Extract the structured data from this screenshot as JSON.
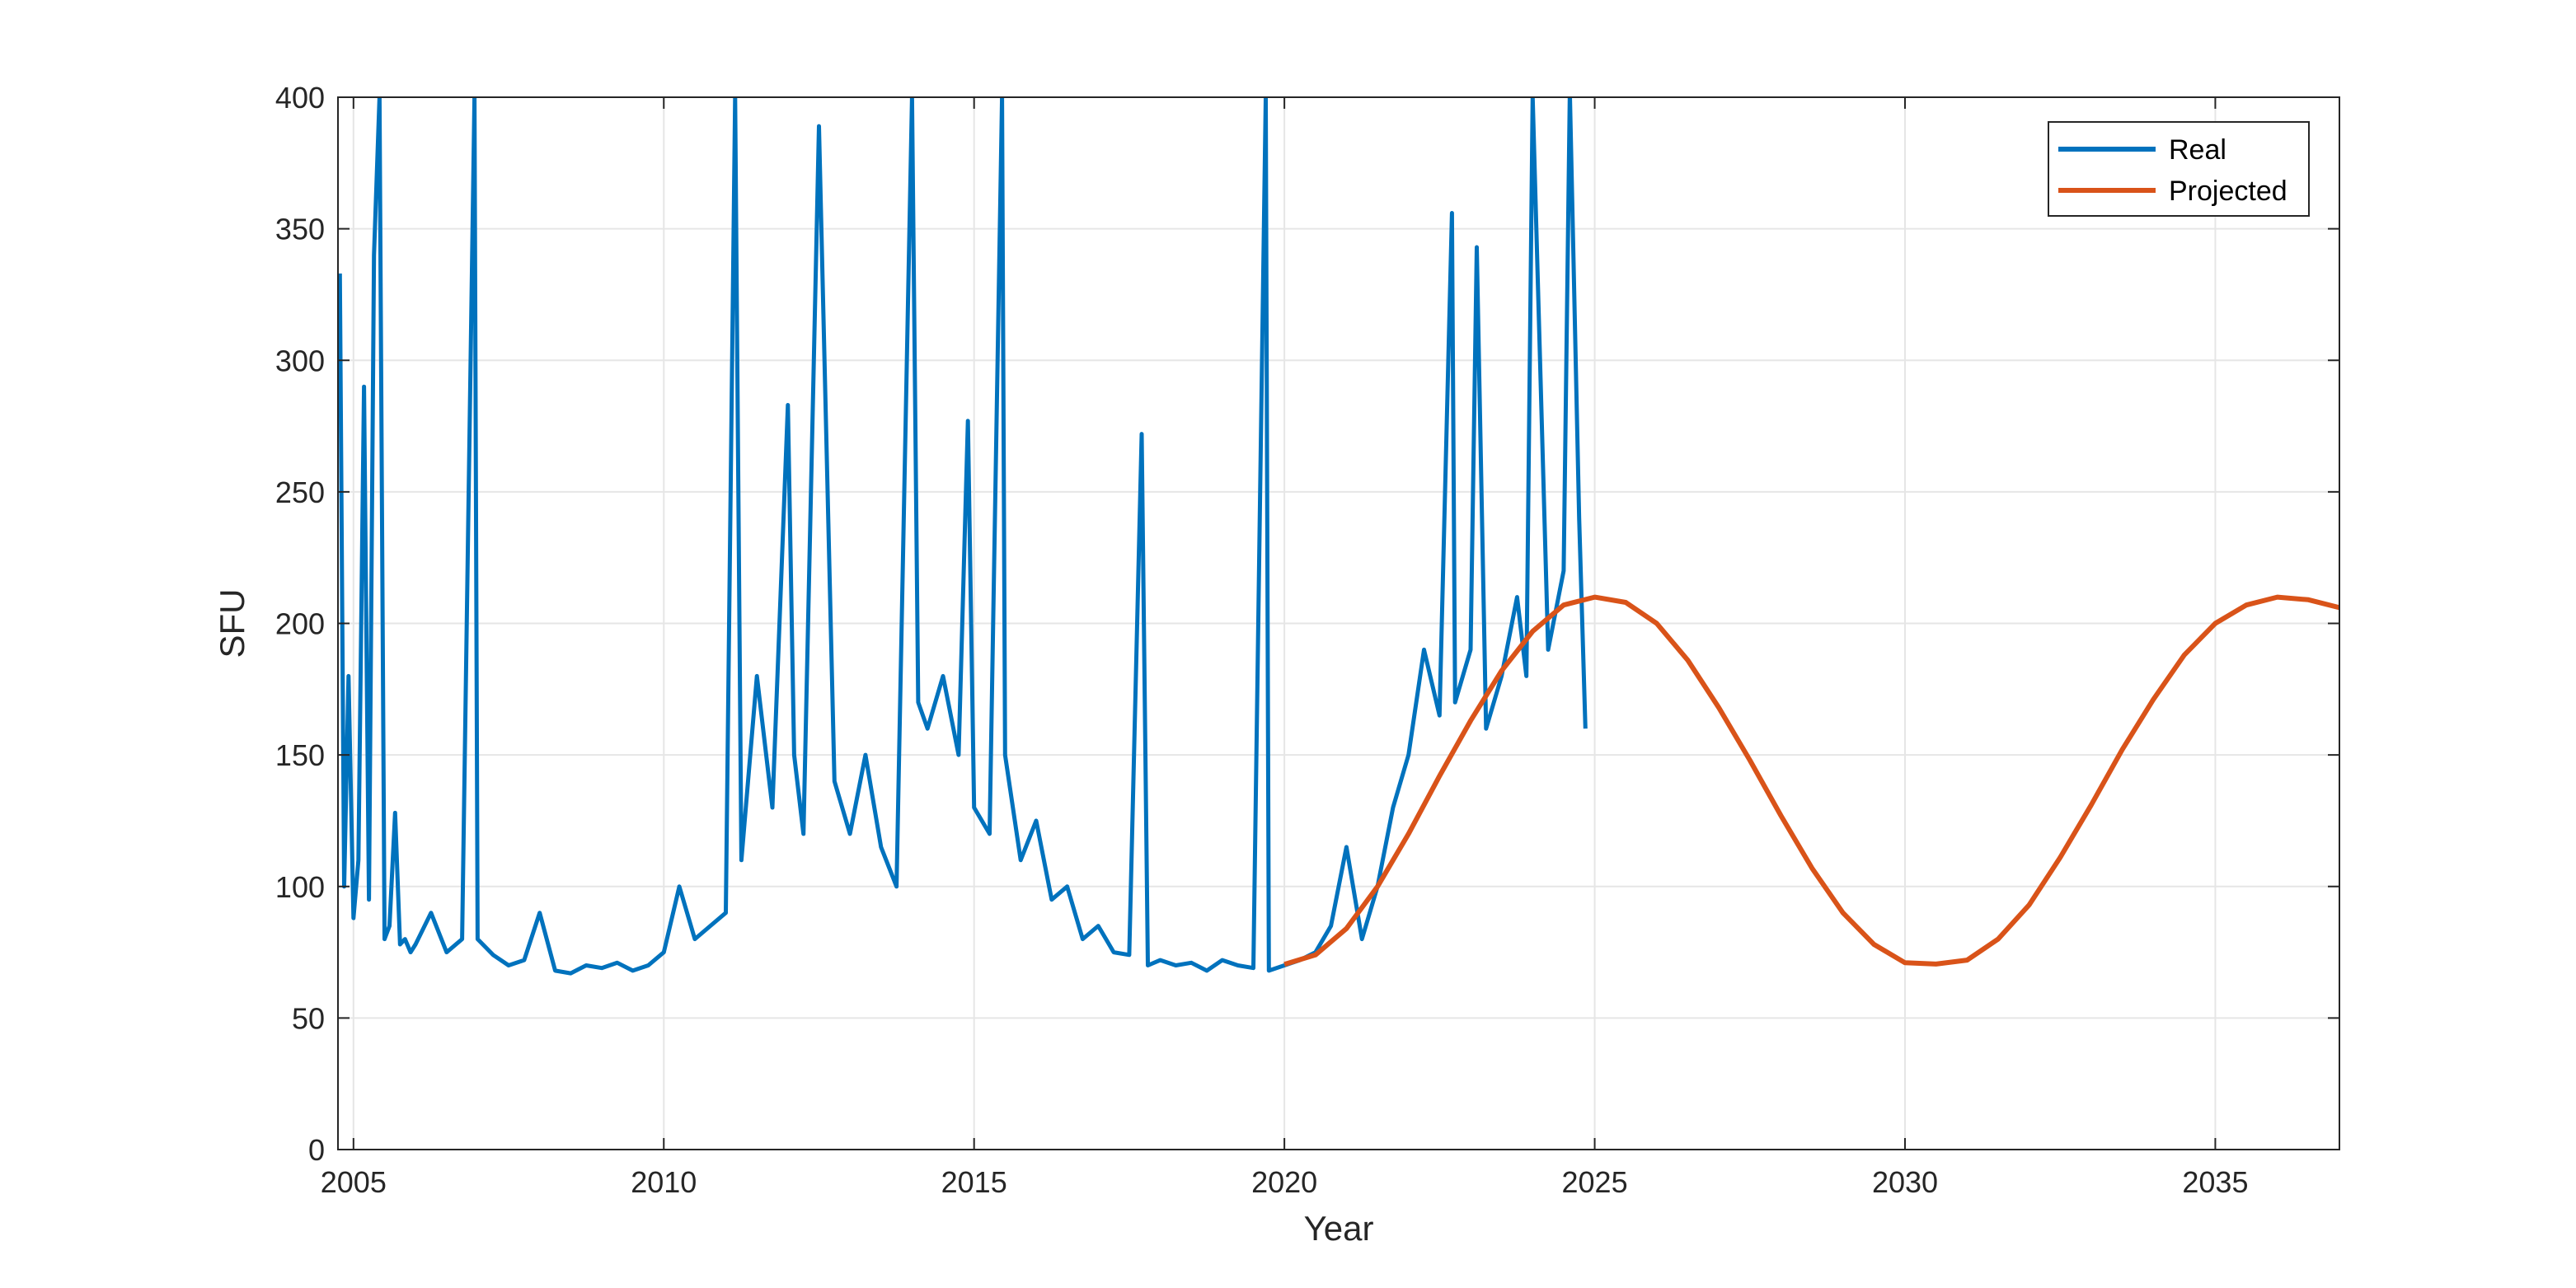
{
  "chart_data": {
    "type": "line",
    "title": "",
    "xlabel": "Year",
    "ylabel": "SFU",
    "xlim": [
      2004.75,
      2037.0
    ],
    "ylim": [
      0,
      400
    ],
    "x_ticks": [
      2005,
      2010,
      2015,
      2020,
      2025,
      2030,
      2035
    ],
    "y_ticks": [
      0,
      50,
      100,
      150,
      200,
      250,
      300,
      350,
      400
    ],
    "grid": true,
    "legend_position": "top-right",
    "colors": {
      "real": "#0072BD",
      "projected": "#D95319",
      "grid": "#e6e6e6",
      "axis": "#262626"
    },
    "series": [
      {
        "name": "Real",
        "x": [
          2004.78,
          2004.85,
          2004.92,
          2005.0,
          2005.08,
          2005.17,
          2005.25,
          2005.33,
          2005.42,
          2005.5,
          2005.58,
          2005.67,
          2005.75,
          2005.83,
          2005.92,
          2006.0,
          2006.25,
          2006.5,
          2006.75,
          2006.95,
          2007.0,
          2007.25,
          2007.5,
          2007.75,
          2008.0,
          2008.25,
          2008.5,
          2008.75,
          2009.0,
          2009.25,
          2009.5,
          2009.75,
          2010.0,
          2010.25,
          2010.5,
          2010.75,
          2011.0,
          2011.15,
          2011.25,
          2011.5,
          2011.75,
          2012.0,
          2012.1,
          2012.25,
          2012.5,
          2012.75,
          2013.0,
          2013.25,
          2013.5,
          2013.75,
          2014.0,
          2014.1,
          2014.25,
          2014.5,
          2014.75,
          2014.9,
          2015.0,
          2015.25,
          2015.45,
          2015.5,
          2015.75,
          2016.0,
          2016.25,
          2016.5,
          2016.75,
          2017.0,
          2017.25,
          2017.5,
          2017.7,
          2017.8,
          2018.0,
          2018.25,
          2018.5,
          2018.75,
          2019.0,
          2019.25,
          2019.5,
          2019.7,
          2019.75,
          2020.0,
          2020.25,
          2020.5,
          2020.75,
          2021.0,
          2021.25,
          2021.5,
          2021.75,
          2022.0,
          2022.25,
          2022.5,
          2022.7,
          2022.75,
          2023.0,
          2023.1,
          2023.25,
          2023.5,
          2023.75,
          2023.9,
          2024.0,
          2024.25,
          2024.5,
          2024.6,
          2024.75,
          2024.85
        ],
        "values": [
          333,
          100,
          180,
          88,
          110,
          290,
          95,
          340,
          400,
          80,
          85,
          128,
          78,
          80,
          75,
          78,
          90,
          75,
          80,
          400,
          80,
          74,
          70,
          72,
          90,
          68,
          67,
          70,
          69,
          71,
          68,
          70,
          75,
          100,
          80,
          85,
          90,
          400,
          110,
          180,
          130,
          283,
          150,
          120,
          389,
          140,
          120,
          150,
          115,
          100,
          400,
          170,
          160,
          180,
          150,
          277,
          130,
          120,
          400,
          150,
          110,
          125,
          95,
          100,
          80,
          85,
          75,
          74,
          272,
          70,
          72,
          70,
          71,
          68,
          72,
          70,
          69,
          400,
          68,
          70,
          72,
          75,
          85,
          115,
          80,
          100,
          130,
          150,
          190,
          165,
          356,
          170,
          190,
          343,
          160,
          180,
          210,
          180,
          400,
          190,
          220,
          402,
          240,
          160
        ]
      },
      {
        "name": "Projected",
        "x": [
          2020.0,
          2020.5,
          2021.0,
          2021.5,
          2022.0,
          2022.5,
          2023.0,
          2023.5,
          2024.0,
          2024.5,
          2025.0,
          2025.5,
          2026.0,
          2026.5,
          2027.0,
          2027.5,
          2028.0,
          2028.5,
          2029.0,
          2029.5,
          2030.0,
          2030.5,
          2031.0,
          2031.5,
          2032.0,
          2032.5,
          2033.0,
          2033.5,
          2034.0,
          2034.5,
          2035.0,
          2035.5,
          2036.0,
          2036.5,
          2037.0
        ],
        "values": [
          70.4,
          74.0,
          84.0,
          100.0,
          120.0,
          142.0,
          163.0,
          182.0,
          197.0,
          207.0,
          210.0,
          208.0,
          200.0,
          186.0,
          168.0,
          148.0,
          127.0,
          107.0,
          90.0,
          78.0,
          71.0,
          70.5,
          72.0,
          80.0,
          93.0,
          111.0,
          131.0,
          152.0,
          171.0,
          188.0,
          200.0,
          207.0,
          210.0,
          209.0,
          206.0
        ]
      }
    ]
  }
}
